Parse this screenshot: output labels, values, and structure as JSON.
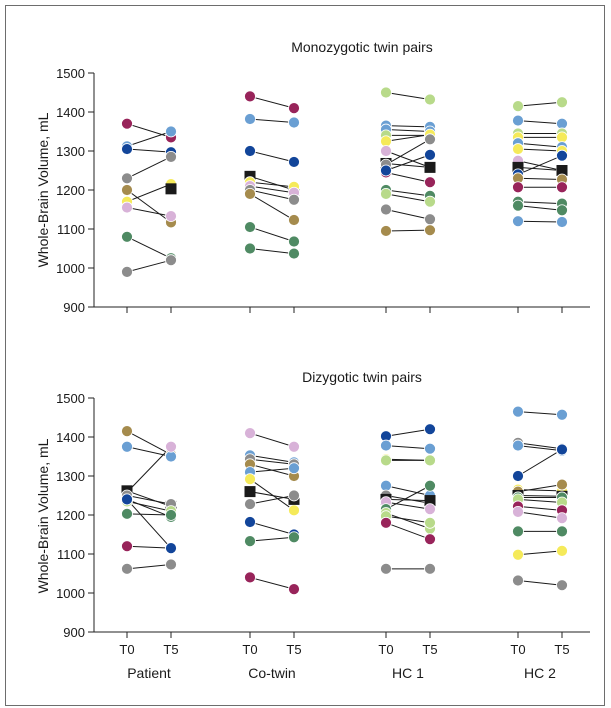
{
  "figure": {
    "ylabel": "Whole-Brain Volume, mL",
    "groups": [
      "Patient",
      "Co-twin",
      "HC 1",
      "HC 2"
    ],
    "timepoints": [
      "T0",
      "T5"
    ]
  },
  "colors": {
    "maroon": "#98245a",
    "blue": "#6a9fd3",
    "navy": "#12459a",
    "gray": "#8c8c8c",
    "tan": "#a58b4d",
    "lavender": "#d8b2d8",
    "green": "#4f8a63",
    "lightgreen": "#b8da8a",
    "yellow": "#f5ea5a",
    "black": "#1a1a1a"
  },
  "chart_data": [
    {
      "type": "scatter",
      "title": "Monozygotic twin pairs",
      "ylabel": "Whole-Brain Volume, mL",
      "ylim": [
        900,
        1500
      ],
      "yticks": [
        900,
        1000,
        1100,
        1200,
        1300,
        1400,
        1500
      ],
      "categories": [
        "T0",
        "T5"
      ],
      "groups": [
        {
          "name": "Patient",
          "pairs": [
            {
              "color": "maroon",
              "t0": 1370,
              "t5": 1335
            },
            {
              "color": "blue",
              "t0": 1312,
              "t5": 1350
            },
            {
              "color": "navy",
              "t0": 1305,
              "t5": 1297
            },
            {
              "color": "gray",
              "t0": 1230,
              "t5": 1285
            },
            {
              "color": "tan",
              "t0": 1200,
              "t5": 1117
            },
            {
              "color": "yellow",
              "t0": 1170,
              "t5": 1215
            },
            {
              "color": "lavender",
              "t0": 1155,
              "t5": 1133
            },
            {
              "color": "green",
              "t0": 1080,
              "t5": 1025
            },
            {
              "color": "gray",
              "t0": 990,
              "t5": 1020
            },
            {
              "color": "black",
              "marker": "square",
              "t5": 1203
            }
          ]
        },
        {
          "name": "Co-twin",
          "pairs": [
            {
              "color": "maroon",
              "t0": 1440,
              "t5": 1410
            },
            {
              "color": "blue",
              "t0": 1382,
              "t5": 1373
            },
            {
              "color": "navy",
              "t0": 1300,
              "t5": 1272
            },
            {
              "color": "black",
              "marker": "square",
              "t0": 1235,
              "t5": 1200
            },
            {
              "color": "yellow",
              "t0": 1220,
              "t5": 1208
            },
            {
              "color": "lavender",
              "t0": 1210,
              "t5": 1193
            },
            {
              "color": "gray",
              "t0": 1200,
              "t5": 1175
            },
            {
              "color": "tan",
              "t0": 1190,
              "t5": 1123
            },
            {
              "color": "green",
              "t0": 1105,
              "t5": 1068
            },
            {
              "color": "green",
              "t0": 1050,
              "t5": 1037
            }
          ]
        },
        {
          "name": "HC 1",
          "pairs": [
            {
              "color": "lightgreen",
              "t0": 1450,
              "t5": 1432
            },
            {
              "color": "blue",
              "t0": 1365,
              "t5": 1362
            },
            {
              "color": "blue",
              "t0": 1355,
              "t5": 1350
            },
            {
              "color": "lightgreen",
              "t0": 1340,
              "t5": 1340
            },
            {
              "color": "yellow",
              "t0": 1325,
              "t5": 1342
            },
            {
              "color": "lavender",
              "t0": 1300,
              "t5": 1258
            },
            {
              "color": "black",
              "marker": "square",
              "t0": 1268,
              "t5": 1258
            },
            {
              "color": "gray",
              "t0": 1265,
              "t5": 1330
            },
            {
              "color": "maroon",
              "t0": 1245,
              "t5": 1220
            },
            {
              "color": "navy",
              "t0": 1250,
              "t5": 1290
            },
            {
              "color": "green",
              "t0": 1200,
              "t5": 1185
            },
            {
              "color": "lightgreen",
              "t0": 1190,
              "t5": 1170
            },
            {
              "color": "gray",
              "t0": 1150,
              "t5": 1125
            },
            {
              "color": "tan",
              "t0": 1095,
              "t5": 1097
            }
          ]
        },
        {
          "name": "HC 2",
          "pairs": [
            {
              "color": "lightgreen",
              "t0": 1415,
              "t5": 1425
            },
            {
              "color": "blue",
              "t0": 1378,
              "t5": 1370
            },
            {
              "color": "lightgreen",
              "t0": 1345,
              "t5": 1345
            },
            {
              "color": "yellow",
              "t0": 1335,
              "t5": 1335
            },
            {
              "color": "blue",
              "t0": 1320,
              "t5": 1310
            },
            {
              "color": "yellow",
              "t0": 1305,
              "t5": 1300
            },
            {
              "color": "lavender",
              "t0": 1275,
              "t5": 1250
            },
            {
              "color": "black",
              "marker": "square",
              "t0": 1258,
              "t5": 1250
            },
            {
              "color": "navy",
              "t0": 1240,
              "t5": 1288
            },
            {
              "color": "tan",
              "t0": 1230,
              "t5": 1227
            },
            {
              "color": "maroon",
              "t0": 1207,
              "t5": 1207
            },
            {
              "color": "green",
              "t0": 1170,
              "t5": 1165
            },
            {
              "color": "green",
              "t0": 1160,
              "t5": 1148
            },
            {
              "color": "blue",
              "t0": 1120,
              "t5": 1118
            }
          ]
        }
      ]
    },
    {
      "type": "scatter",
      "title": "Dizygotic twin pairs",
      "ylabel": "Whole-Brain Volume, mL",
      "ylim": [
        900,
        1500
      ],
      "yticks": [
        900,
        1000,
        1100,
        1200,
        1300,
        1400,
        1500
      ],
      "categories": [
        "T0",
        "T5"
      ],
      "groups": [
        {
          "name": "Patient",
          "pairs": [
            {
              "color": "tan",
              "t0": 1415,
              "t5": 1355
            },
            {
              "color": "blue",
              "t0": 1375,
              "t5": 1350
            },
            {
              "color": "lavender",
              "t0": 1258,
              "t5": 1375
            },
            {
              "color": "black",
              "marker": "square",
              "t0": 1262,
              "t5": 1222
            },
            {
              "color": "gray",
              "t0": 1250,
              "t5": 1228
            },
            {
              "color": "green",
              "t0": 1240,
              "t5": 1195
            },
            {
              "color": "lightgreen",
              "t0": 1235,
              "t5": 1210
            },
            {
              "color": "green",
              "t0": 1203,
              "t5": 1200
            },
            {
              "color": "maroon",
              "t0": 1120,
              "t5": 1115
            },
            {
              "color": "navy",
              "t0": 1240,
              "t5": 1115
            },
            {
              "color": "gray",
              "t0": 1062,
              "t5": 1073
            }
          ]
        },
        {
          "name": "Co-twin",
          "pairs": [
            {
              "color": "lavender",
              "t0": 1410,
              "t5": 1375
            },
            {
              "color": "blue",
              "t0": 1353,
              "t5": 1335
            },
            {
              "color": "gray",
              "t0": 1343,
              "t5": 1330
            },
            {
              "color": "tan",
              "t0": 1330,
              "t5": 1300
            },
            {
              "color": "blue",
              "t0": 1310,
              "t5": 1320
            },
            {
              "color": "yellow",
              "t0": 1292,
              "t5": 1212
            },
            {
              "color": "black",
              "marker": "square",
              "t0": 1260,
              "t5": 1240
            },
            {
              "color": "gray",
              "t0": 1228,
              "t5": 1250
            },
            {
              "color": "navy",
              "t0": 1182,
              "t5": 1150
            },
            {
              "color": "green",
              "t0": 1133,
              "t5": 1143
            },
            {
              "color": "maroon",
              "t0": 1040,
              "t5": 1010
            }
          ]
        },
        {
          "name": "HC 1",
          "pairs": [
            {
              "color": "navy",
              "t0": 1402,
              "t5": 1420
            },
            {
              "color": "blue",
              "t0": 1378,
              "t5": 1370
            },
            {
              "color": "yellow",
              "t0": 1343,
              "t5": 1340
            },
            {
              "color": "lightgreen",
              "t0": 1340,
              "t5": 1340
            },
            {
              "color": "blue",
              "t0": 1275,
              "t5": 1250
            },
            {
              "color": "gray",
              "t0": 1250,
              "t5": 1230
            },
            {
              "color": "black",
              "marker": "square",
              "t0": 1240,
              "t5": 1237
            },
            {
              "color": "lavender",
              "t0": 1233,
              "t5": 1215
            },
            {
              "color": "green",
              "t0": 1215,
              "t5": 1275
            },
            {
              "color": "lightgreen",
              "t0": 1205,
              "t5": 1165
            },
            {
              "color": "lightgreen",
              "t0": 1197,
              "t5": 1180
            },
            {
              "color": "maroon",
              "t0": 1180,
              "t5": 1138
            },
            {
              "color": "gray",
              "t0": 1062,
              "t5": 1062
            }
          ]
        },
        {
          "name": "HC 2",
          "pairs": [
            {
              "color": "blue",
              "t0": 1465,
              "t5": 1457
            },
            {
              "color": "gray",
              "t0": 1385,
              "t5": 1370
            },
            {
              "color": "blue",
              "t0": 1378,
              "t5": 1365
            },
            {
              "color": "navy",
              "t0": 1300,
              "t5": 1368
            },
            {
              "color": "yellow",
              "t0": 1265,
              "t5": 1262
            },
            {
              "color": "tan",
              "t0": 1260,
              "t5": 1278
            },
            {
              "color": "black",
              "marker": "square",
              "t0": 1250,
              "t5": 1248
            },
            {
              "color": "green",
              "t0": 1245,
              "t5": 1245
            },
            {
              "color": "lightgreen",
              "t0": 1240,
              "t5": 1232
            },
            {
              "color": "maroon",
              "t0": 1222,
              "t5": 1212
            },
            {
              "color": "lavender",
              "t0": 1208,
              "t5": 1192
            },
            {
              "color": "green",
              "t0": 1158,
              "t5": 1158
            },
            {
              "color": "yellow",
              "t0": 1098,
              "t5": 1108
            },
            {
              "color": "gray",
              "t0": 1032,
              "t5": 1020
            }
          ]
        }
      ]
    }
  ]
}
